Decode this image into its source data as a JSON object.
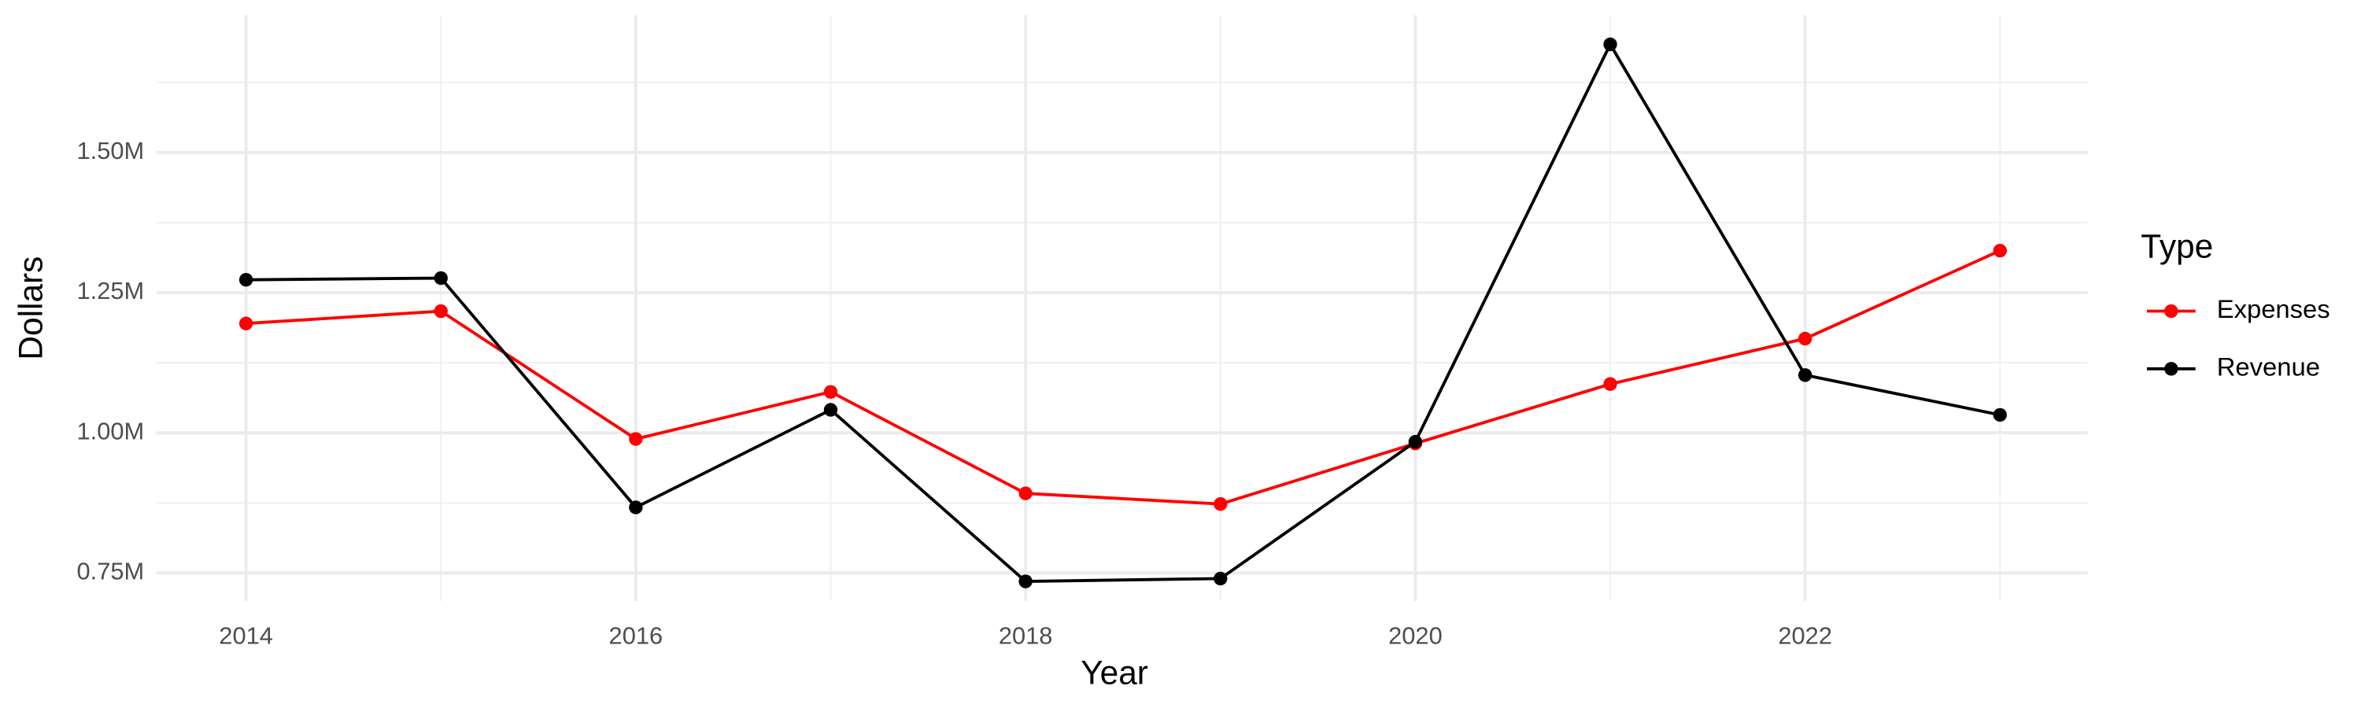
{
  "chart_data": {
    "type": "line",
    "x_label": "Year",
    "y_label": "Dollars",
    "x": [
      2014,
      2015,
      2016,
      2017,
      2018,
      2019,
      2020,
      2021,
      2022,
      2023
    ],
    "series": [
      {
        "name": "Expenses",
        "color": "#ff0000",
        "values": [
          1195000,
          1217000,
          989000,
          1073000,
          892000,
          873000,
          981000,
          1087000,
          1168000,
          1325000
        ]
      },
      {
        "name": "Revenue",
        "color": "#000000",
        "values": [
          1273000,
          1276000,
          867000,
          1041000,
          735000,
          740000,
          984000,
          1693000,
          1103000,
          1032000
        ]
      }
    ],
    "xlim": [
      2013.54,
      2023.45
    ],
    "xticks": [
      2014,
      2016,
      2018,
      2020,
      2022
    ],
    "ylim": [
      700000,
      1745000
    ],
    "yticks": [
      {
        "value": 750000,
        "label": "0.75M"
      },
      {
        "value": 1000000,
        "label": "1.00M"
      },
      {
        "value": 1250000,
        "label": "1.25M"
      },
      {
        "value": 1500000,
        "label": "1.50M"
      }
    ],
    "grid": true,
    "legend_title": "Type",
    "legend": "right"
  }
}
